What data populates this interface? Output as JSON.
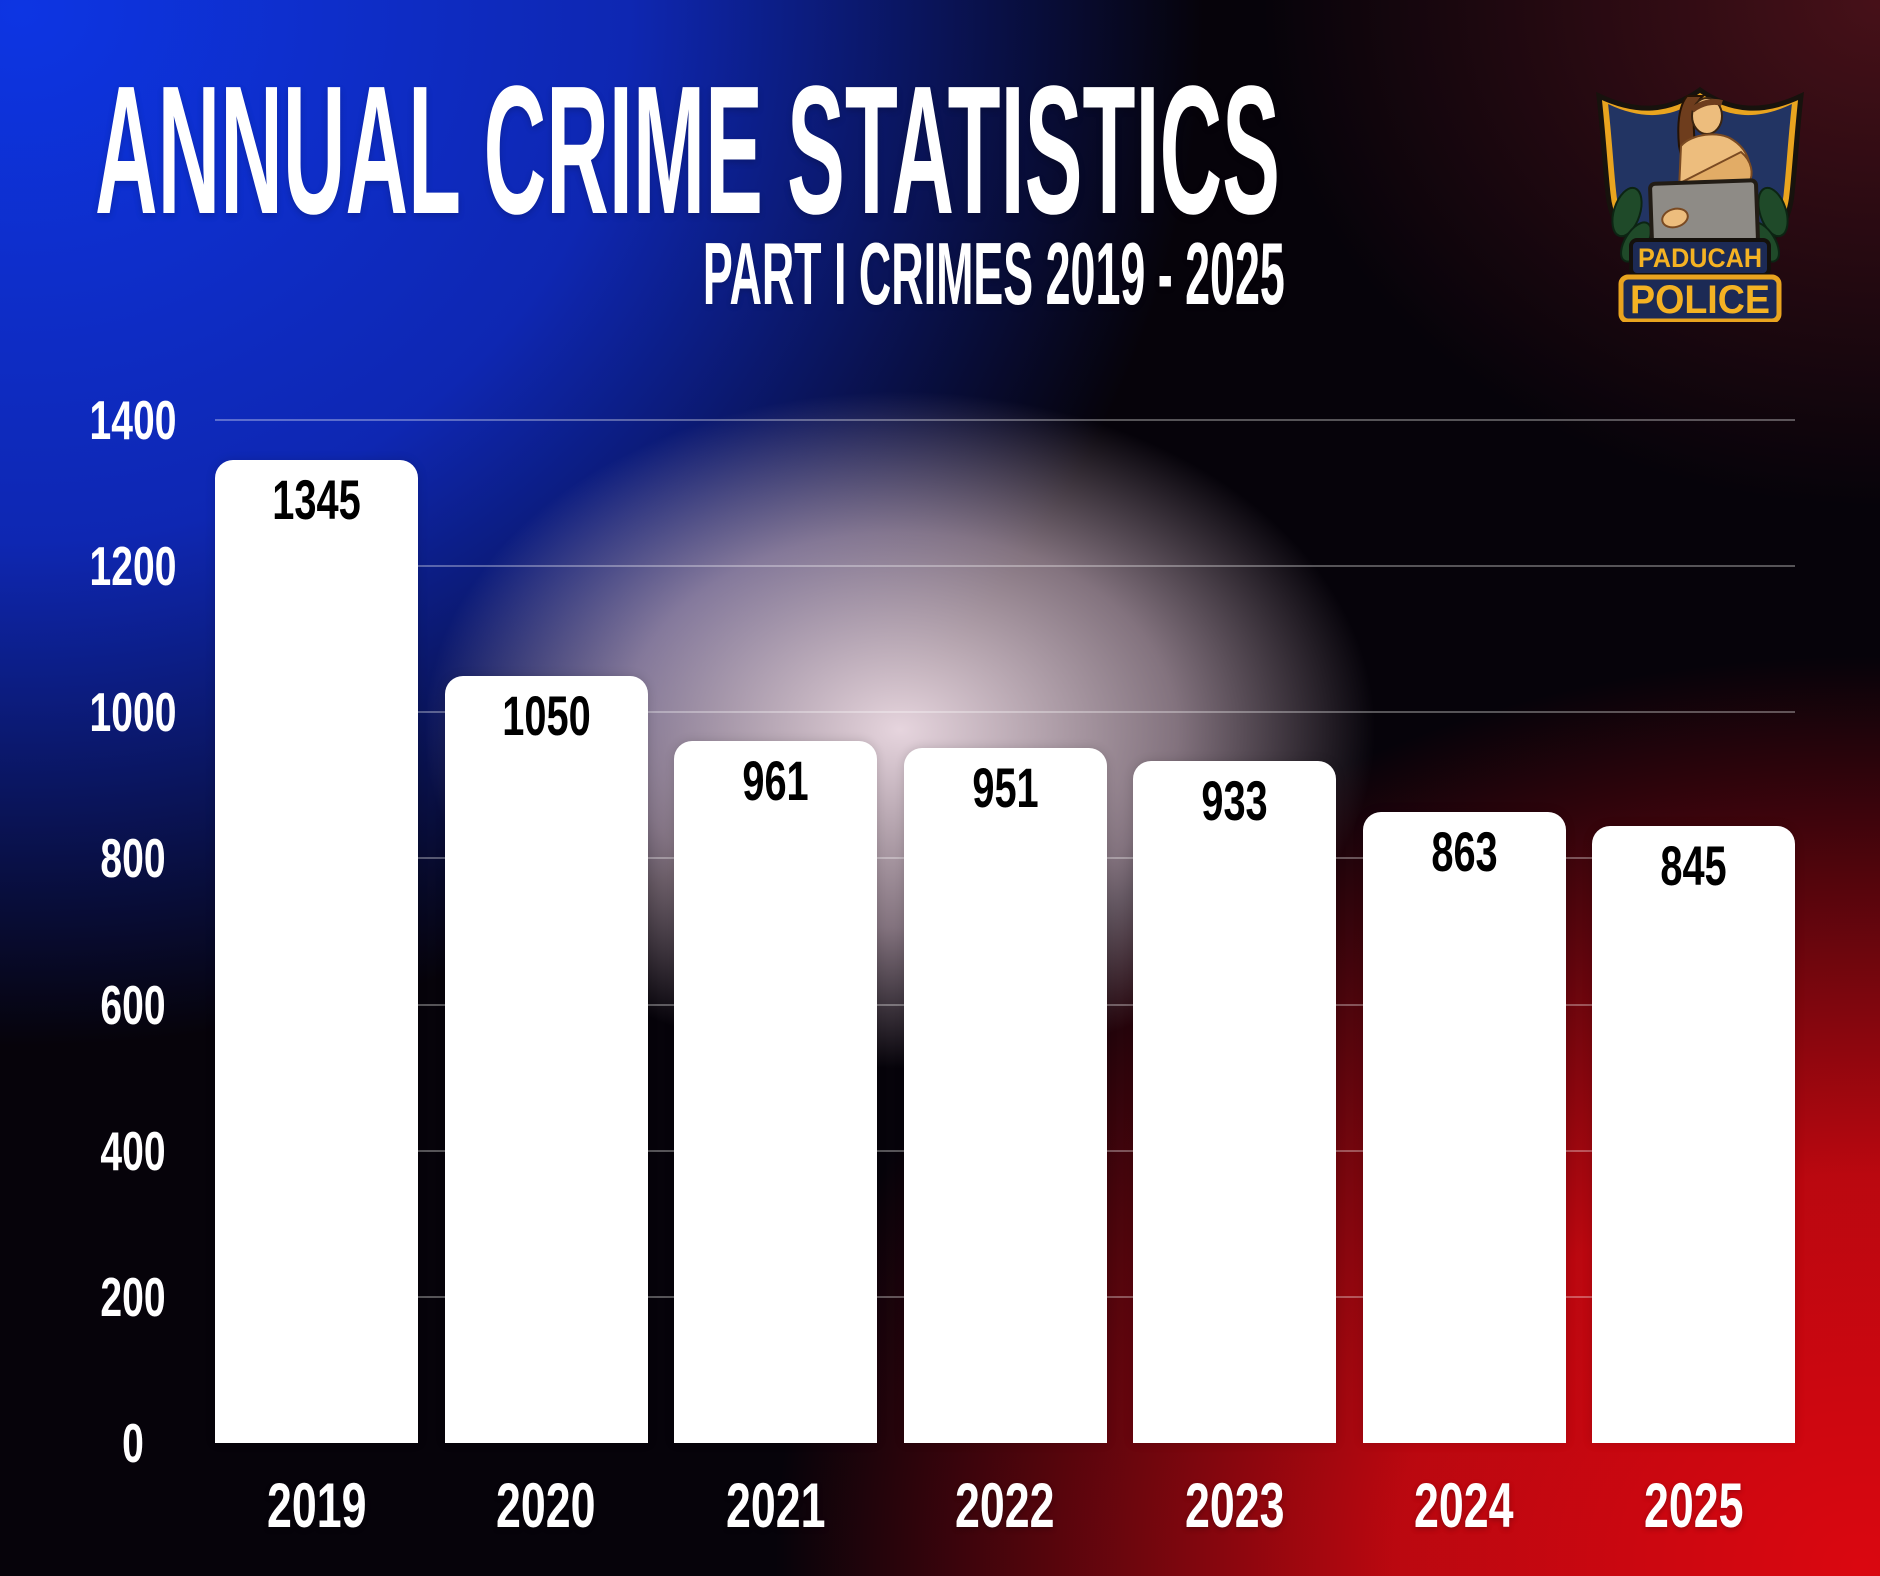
{
  "title": "ANNUAL CRIME STATISTICS",
  "subtitle": "PART I CRIMES 2019 - 2025",
  "logo": {
    "city": "PADUCAH",
    "department": "POLICE"
  },
  "chart_data": {
    "type": "bar",
    "title": "ANNUAL CRIME STATISTICS",
    "subtitle": "PART I CRIMES 2019 - 2025",
    "categories": [
      "2019",
      "2020",
      "2021",
      "2022",
      "2023",
      "2024",
      "2025"
    ],
    "values": [
      1345,
      1050,
      961,
      951,
      933,
      863,
      845
    ],
    "xlabel": "",
    "ylabel": "",
    "ylim": [
      0,
      1400
    ],
    "yticks": [
      0,
      200,
      400,
      600,
      800,
      1000,
      1200,
      1400
    ],
    "grid": true,
    "legend": "none",
    "bar_color": "#ffffff",
    "value_label_color": "#000000",
    "axis_label_color": "#ffffff"
  },
  "colors": {
    "background_top_left": "#0d35e3",
    "background_bottom_left": "#020204",
    "background_top_right": "#23090d",
    "background_bottom_right": "#d90810",
    "center_glow": "#eedde8",
    "gridline": "rgba(255,255,255,0.32)",
    "badge_gold": "#e9a41f",
    "badge_navy": "#1c2a55",
    "badge_field_blue": "#223463",
    "badge_text_gold": "#f4b223",
    "badge_leaf_green": "#1f4a29",
    "badge_skin": "#edbd7d",
    "badge_hair_brown": "#6e3d1d",
    "badge_tablet_grey": "#8e8b86"
  }
}
